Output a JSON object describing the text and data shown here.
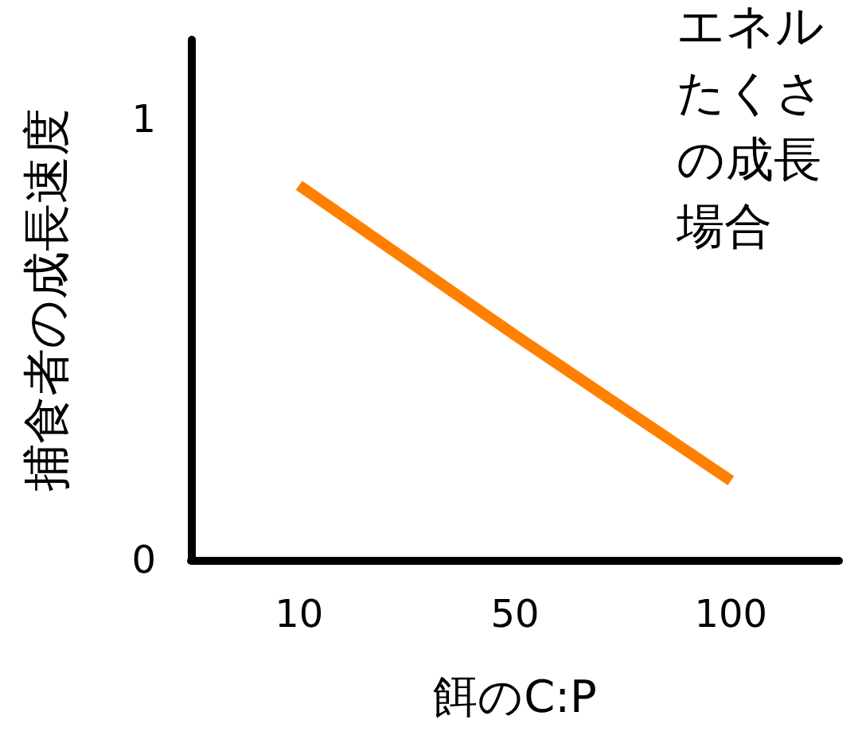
{
  "chart_data": {
    "type": "line",
    "xlabel": "餌のC:P",
    "ylabel": "捕食者の成長速度",
    "categories": [
      "10",
      "50",
      "100"
    ],
    "series": [
      {
        "color": "#ff8000",
        "values": [
          0.85,
          0.51,
          0.18
        ]
      }
    ],
    "ylim": [
      0,
      1.18
    ],
    "yticks": [
      0,
      1
    ],
    "marker": "none",
    "line_style": "solid",
    "annotations": [
      "エネル",
      "たくさ",
      "の成長",
      "場合"
    ]
  }
}
